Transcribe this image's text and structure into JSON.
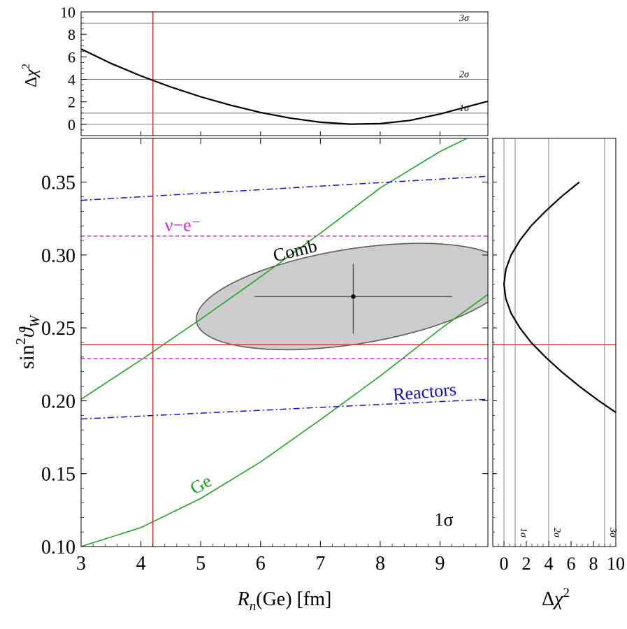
{
  "colors": {
    "ge": "#16a21c",
    "reactors": "#1010d0",
    "nu_e": "#e020e0",
    "sm": "#ee3333",
    "ellipse_fill": "#cccccc",
    "ellipse_stroke": "#555555",
    "curve": "#000000",
    "sigma_line": "#888888"
  },
  "chart_data": [
    {
      "id": "main",
      "type": "line",
      "xlabel": {
        "var": "R",
        "sub": "n",
        "rest": "(Ge) [fm]"
      },
      "ylabel": {
        "pre": "sin",
        "sup": "2",
        "var": "ϑ",
        "sub": "W"
      },
      "xlim": [
        3,
        9.8
      ],
      "ylim": [
        0.1,
        0.38
      ],
      "xticks": [
        3,
        4,
        5,
        6,
        7,
        8,
        9
      ],
      "yticks": [
        0.1,
        0.15,
        0.2,
        0.25,
        0.3,
        0.35
      ],
      "ytick_labels": [
        "0.10",
        "0.15",
        "0.20",
        "0.25",
        "0.30",
        "0.35"
      ],
      "grid": false,
      "confidence_label": "1σ",
      "series": [
        {
          "name": "Ge",
          "style": "solid-green",
          "x": [
            3.0,
            4.0,
            5.0,
            6.0,
            7.0,
            8.0,
            9.0,
            9.8
          ],
          "y": [
            0.1,
            0.113,
            0.133,
            0.158,
            0.187,
            0.217,
            0.249,
            0.273
          ]
        },
        {
          "name": "",
          "style": "solid-green",
          "x": [
            3.0,
            4.0,
            5.0,
            6.0,
            7.0,
            8.0,
            9.0,
            9.45
          ],
          "y": [
            0.201,
            0.228,
            0.256,
            0.285,
            0.315,
            0.346,
            0.371,
            0.38
          ]
        },
        {
          "name": "Reactors",
          "style": "dashdot-blue",
          "x": [
            3.0,
            9.8
          ],
          "y": [
            0.1875,
            0.201
          ]
        },
        {
          "name": "",
          "style": "dashdot-blue",
          "x": [
            3.0,
            9.8
          ],
          "y": [
            0.3375,
            0.354
          ]
        },
        {
          "name": "ν−e⁻",
          "style": "dashed-magenta",
          "x": [
            3.0,
            9.8
          ],
          "y": [
            0.313,
            0.313
          ]
        },
        {
          "name": "",
          "style": "dashed-magenta",
          "x": [
            3.0,
            9.8
          ],
          "y": [
            0.229,
            0.229
          ]
        },
        {
          "name": "",
          "style": "sm-horizontal",
          "x": [
            3.0,
            9.8
          ],
          "y": [
            0.2385,
            0.2385
          ]
        },
        {
          "name": "",
          "style": "sm-vertical",
          "x": [
            4.2,
            4.2
          ],
          "y": [
            0.1,
            0.38
          ]
        }
      ],
      "region": {
        "name": "Comb",
        "center": [
          7.55,
          0.2715
        ],
        "x": [
          5.05,
          9.8
        ],
        "y": [
          0.233,
          0.306
        ]
      },
      "best_fit": {
        "x": 7.55,
        "y": 0.2715,
        "x_err": [
          5.9,
          9.2
        ],
        "y_err": [
          0.246,
          0.294
        ]
      },
      "annotations": [
        {
          "text": "Comb",
          "x": 6.6,
          "y": 0.299,
          "color": "curve",
          "rotate": -14
        },
        {
          "text": "ν−e⁻",
          "x": 4.7,
          "y": 0.3165,
          "color": "nu_e",
          "rotate": 0
        },
        {
          "text": "Reactors",
          "x": 8.75,
          "y": 0.202,
          "color": "reactors",
          "rotate": -5
        },
        {
          "text": "Ge",
          "x": 5.05,
          "y": 0.139,
          "color": "ge",
          "rotate": -30
        }
      ]
    },
    {
      "id": "top",
      "type": "line",
      "ylabel": {
        "pre": "Δ",
        "var": "χ",
        "sup": "2"
      },
      "xlim": [
        3,
        9.8
      ],
      "ylim": [
        -1,
        10
      ],
      "yticks": [
        0,
        2,
        4,
        6,
        8,
        10
      ],
      "sigma_levels": [
        {
          "value": 1,
          "label": "1σ"
        },
        {
          "value": 4,
          "label": "2σ"
        },
        {
          "value": 9,
          "label": "3σ"
        }
      ],
      "zero_line": 0,
      "marker_x": 4.2,
      "series": [
        {
          "name": "",
          "x": [
            3.0,
            3.5,
            4.0,
            4.5,
            5.0,
            5.5,
            6.0,
            6.5,
            7.0,
            7.5,
            8.0,
            8.5,
            9.0,
            9.5,
            9.8
          ],
          "y": [
            6.7,
            5.42,
            4.31,
            3.32,
            2.45,
            1.7,
            1.06,
            0.55,
            0.19,
            0.02,
            0.06,
            0.35,
            0.92,
            1.63,
            2.05
          ]
        }
      ]
    },
    {
      "id": "right",
      "type": "line",
      "xlabel": {
        "pre": "Δ",
        "var": "χ",
        "sup": "2"
      },
      "xlim": [
        -1,
        10
      ],
      "ylim": [
        0.1,
        0.38
      ],
      "xticks": [
        0,
        2,
        4,
        6,
        8,
        10
      ],
      "sigma_levels": [
        {
          "value": 1,
          "label": "1σ"
        },
        {
          "value": 4,
          "label": "2σ"
        },
        {
          "value": 9,
          "label": "3σ"
        }
      ],
      "zero_line": 0,
      "marker_y": 0.2385,
      "series": [
        {
          "name": "",
          "y": [
            0.192,
            0.2,
            0.21,
            0.22,
            0.23,
            0.24,
            0.25,
            0.26,
            0.27,
            0.28,
            0.29,
            0.3,
            0.31,
            0.32,
            0.33,
            0.34,
            0.35
          ],
          "x": [
            10.0,
            8.47,
            6.73,
            5.13,
            3.71,
            2.43,
            1.42,
            0.64,
            0.16,
            0.0,
            0.16,
            0.64,
            1.42,
            2.43,
            3.71,
            5.13,
            6.73
          ]
        }
      ]
    }
  ]
}
